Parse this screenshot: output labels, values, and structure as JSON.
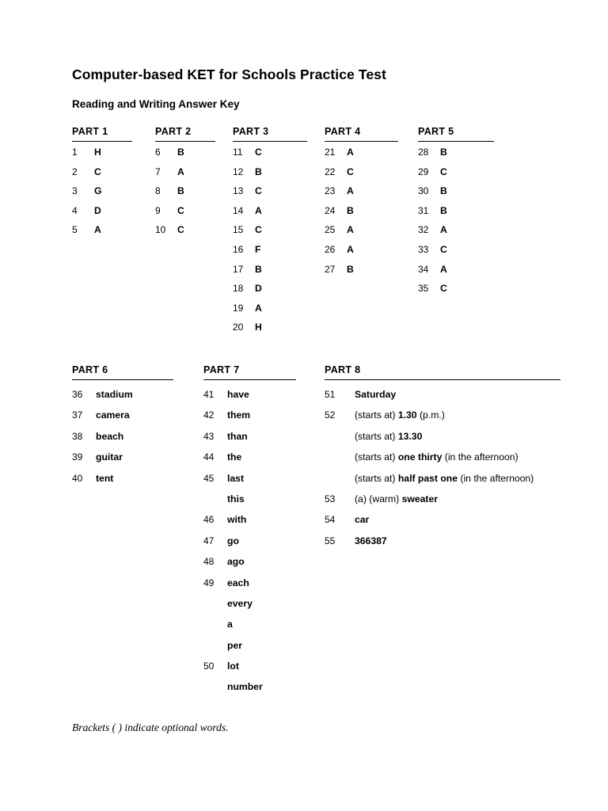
{
  "document": {
    "title": "Computer-based KET for Schools Practice Test",
    "subtitle": "Reading and Writing Answer Key",
    "footnote": "Brackets ( ) indicate optional words."
  },
  "parts": [
    {
      "label": "PART 1",
      "rows": [
        {
          "num": "1",
          "segs": [
            {
              "t": "H",
              "b": true
            }
          ]
        },
        {
          "num": "2",
          "segs": [
            {
              "t": "C",
              "b": true
            }
          ]
        },
        {
          "num": "3",
          "segs": [
            {
              "t": "G",
              "b": true
            }
          ]
        },
        {
          "num": "4",
          "segs": [
            {
              "t": "D",
              "b": true
            }
          ]
        },
        {
          "num": "5",
          "segs": [
            {
              "t": "A",
              "b": true
            }
          ]
        }
      ]
    },
    {
      "label": "PART 2",
      "rows": [
        {
          "num": "6",
          "segs": [
            {
              "t": "B",
              "b": true
            }
          ]
        },
        {
          "num": "7",
          "segs": [
            {
              "t": "A",
              "b": true
            }
          ]
        },
        {
          "num": "8",
          "segs": [
            {
              "t": "B",
              "b": true
            }
          ]
        },
        {
          "num": "9",
          "segs": [
            {
              "t": "C",
              "b": true
            }
          ]
        },
        {
          "num": "10",
          "segs": [
            {
              "t": "C",
              "b": true
            }
          ]
        }
      ]
    },
    {
      "label": "PART 3",
      "rows": [
        {
          "num": "11",
          "segs": [
            {
              "t": "C",
              "b": true
            }
          ]
        },
        {
          "num": "12",
          "segs": [
            {
              "t": "B",
              "b": true
            }
          ]
        },
        {
          "num": "13",
          "segs": [
            {
              "t": "C",
              "b": true
            }
          ]
        },
        {
          "num": "14",
          "segs": [
            {
              "t": "A",
              "b": true
            }
          ]
        },
        {
          "num": "15",
          "segs": [
            {
              "t": "C",
              "b": true
            }
          ]
        },
        {
          "num": "16",
          "segs": [
            {
              "t": "F",
              "b": true
            }
          ]
        },
        {
          "num": "17",
          "segs": [
            {
              "t": "B",
              "b": true
            }
          ]
        },
        {
          "num": "18",
          "segs": [
            {
              "t": "D",
              "b": true
            }
          ]
        },
        {
          "num": "19",
          "segs": [
            {
              "t": "A",
              "b": true
            }
          ]
        },
        {
          "num": "20",
          "segs": [
            {
              "t": "H",
              "b": true
            }
          ]
        }
      ]
    },
    {
      "label": "PART 4",
      "rows": [
        {
          "num": "21",
          "segs": [
            {
              "t": "A",
              "b": true
            }
          ]
        },
        {
          "num": "22",
          "segs": [
            {
              "t": "C",
              "b": true
            }
          ]
        },
        {
          "num": "23",
          "segs": [
            {
              "t": "A",
              "b": true
            }
          ]
        },
        {
          "num": "24",
          "segs": [
            {
              "t": "B",
              "b": true
            }
          ]
        },
        {
          "num": "25",
          "segs": [
            {
              "t": "A",
              "b": true
            }
          ]
        },
        {
          "num": "26",
          "segs": [
            {
              "t": "A",
              "b": true
            }
          ]
        },
        {
          "num": "27",
          "segs": [
            {
              "t": "B",
              "b": true
            }
          ]
        }
      ]
    },
    {
      "label": "PART 5",
      "rows": [
        {
          "num": "28",
          "segs": [
            {
              "t": "B",
              "b": true
            }
          ]
        },
        {
          "num": "29",
          "segs": [
            {
              "t": "C",
              "b": true
            }
          ]
        },
        {
          "num": "30",
          "segs": [
            {
              "t": "B",
              "b": true
            }
          ]
        },
        {
          "num": "31",
          "segs": [
            {
              "t": "B",
              "b": true
            }
          ]
        },
        {
          "num": "32",
          "segs": [
            {
              "t": "A",
              "b": true
            }
          ]
        },
        {
          "num": "33",
          "segs": [
            {
              "t": "C",
              "b": true
            }
          ]
        },
        {
          "num": "34",
          "segs": [
            {
              "t": "A",
              "b": true
            }
          ]
        },
        {
          "num": "35",
          "segs": [
            {
              "t": "C",
              "b": true
            }
          ]
        }
      ]
    },
    {
      "label": "PART 6",
      "rows": [
        {
          "num": "36",
          "segs": [
            {
              "t": "stadium",
              "b": true
            }
          ]
        },
        {
          "num": "37",
          "segs": [
            {
              "t": "camera",
              "b": true
            }
          ]
        },
        {
          "num": "38",
          "segs": [
            {
              "t": "beach",
              "b": true
            }
          ]
        },
        {
          "num": "39",
          "segs": [
            {
              "t": "guitar",
              "b": true
            }
          ]
        },
        {
          "num": "40",
          "segs": [
            {
              "t": "tent",
              "b": true
            }
          ]
        }
      ]
    },
    {
      "label": "PART 7",
      "rows": [
        {
          "num": "41",
          "segs": [
            {
              "t": "have",
              "b": true
            }
          ]
        },
        {
          "num": "42",
          "segs": [
            {
              "t": "them",
              "b": true
            }
          ]
        },
        {
          "num": "43",
          "segs": [
            {
              "t": "than",
              "b": true
            }
          ]
        },
        {
          "num": "44",
          "segs": [
            {
              "t": "the",
              "b": true
            }
          ]
        },
        {
          "num": "45",
          "segs": [
            {
              "t": "last",
              "b": true
            }
          ]
        },
        {
          "num": "",
          "segs": [
            {
              "t": "this",
              "b": true
            }
          ]
        },
        {
          "num": "46",
          "segs": [
            {
              "t": "with",
              "b": true
            }
          ]
        },
        {
          "num": "47",
          "segs": [
            {
              "t": "go",
              "b": true
            }
          ]
        },
        {
          "num": "48",
          "segs": [
            {
              "t": "ago",
              "b": true
            }
          ]
        },
        {
          "num": "49",
          "segs": [
            {
              "t": "each",
              "b": true
            }
          ]
        },
        {
          "num": "",
          "segs": [
            {
              "t": "every",
              "b": true
            }
          ]
        },
        {
          "num": "",
          "segs": [
            {
              "t": "a",
              "b": true
            }
          ]
        },
        {
          "num": "",
          "segs": [
            {
              "t": "per",
              "b": true
            }
          ]
        },
        {
          "num": "50",
          "segs": [
            {
              "t": "lot",
              "b": true
            }
          ]
        },
        {
          "num": "",
          "segs": [
            {
              "t": "number",
              "b": true
            }
          ]
        }
      ]
    },
    {
      "label": "PART 8",
      "rows": [
        {
          "num": "51",
          "segs": [
            {
              "t": "Saturday",
              "b": true
            }
          ]
        },
        {
          "num": "52",
          "segs": [
            {
              "t": "(starts at) ",
              "b": false
            },
            {
              "t": "1.30",
              "b": true
            },
            {
              "t": " (p.m.)",
              "b": false
            }
          ]
        },
        {
          "num": "",
          "segs": [
            {
              "t": "(starts at) ",
              "b": false
            },
            {
              "t": "13.30",
              "b": true
            }
          ]
        },
        {
          "num": "",
          "segs": [
            {
              "t": "(starts at) ",
              "b": false
            },
            {
              "t": "one thirty",
              "b": true
            },
            {
              "t": " (in the afternoon)",
              "b": false
            }
          ]
        },
        {
          "num": "",
          "segs": [
            {
              "t": "(starts at) ",
              "b": false
            },
            {
              "t": "half past one",
              "b": true
            },
            {
              "t": " (in the afternoon)",
              "b": false
            }
          ]
        },
        {
          "num": "53",
          "segs": [
            {
              "t": "(a) (warm) ",
              "b": false
            },
            {
              "t": "sweater",
              "b": true
            }
          ]
        },
        {
          "num": "54",
          "segs": [
            {
              "t": "car",
              "b": true
            }
          ]
        },
        {
          "num": "55",
          "segs": [
            {
              "t": "366387",
              "b": true
            }
          ]
        }
      ]
    }
  ]
}
